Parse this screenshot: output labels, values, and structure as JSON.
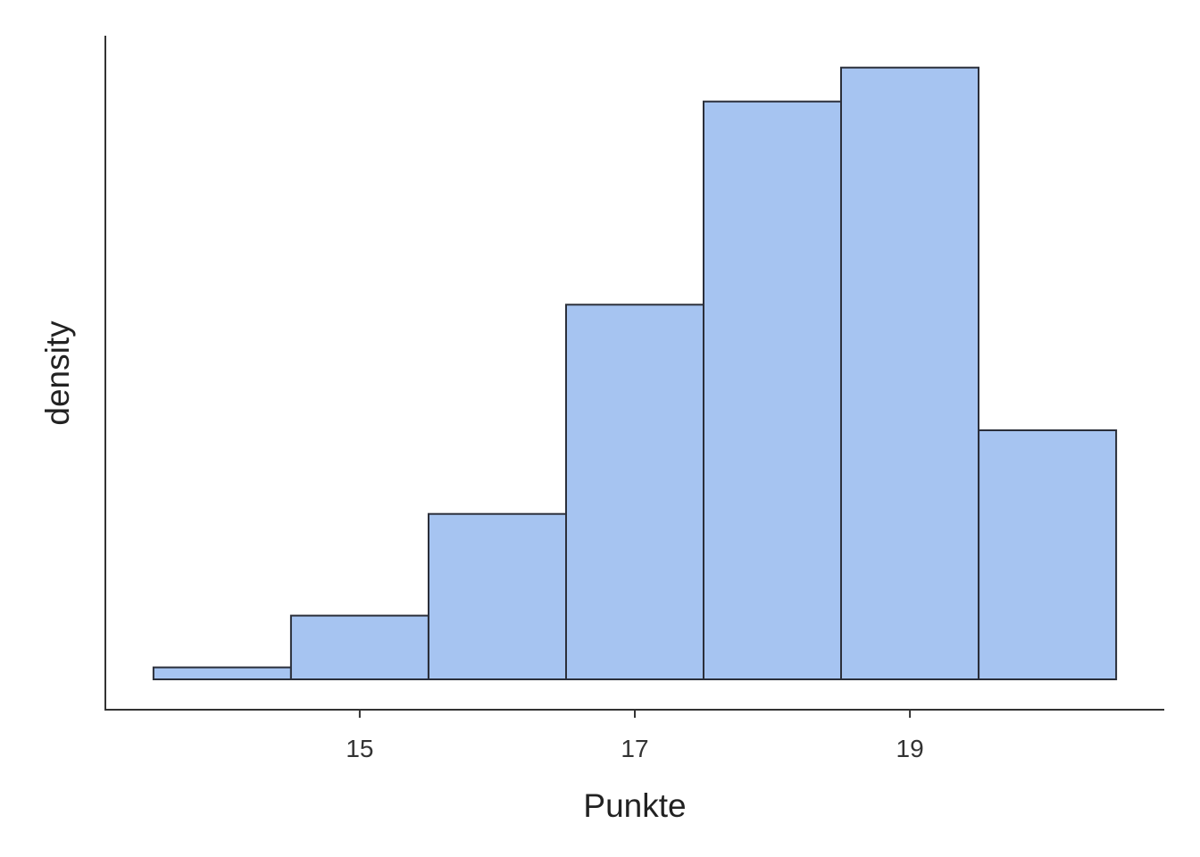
{
  "chart_data": {
    "type": "bar",
    "subtype": "histogram",
    "xlabel": "Punkte",
    "ylabel": "density",
    "x_ticks": [
      15,
      17,
      19
    ],
    "y_ticks_shown": false,
    "xlim": [
      13.15,
      20.85
    ],
    "ylim": [
      0,
      0.323
    ],
    "bin_width": 1,
    "bins": [
      {
        "center": 14,
        "density": 0.006
      },
      {
        "center": 15,
        "density": 0.032
      },
      {
        "center": 16,
        "density": 0.083
      },
      {
        "center": 17,
        "density": 0.188
      },
      {
        "center": 18,
        "density": 0.29
      },
      {
        "center": 19,
        "density": 0.307
      },
      {
        "center": 20,
        "density": 0.125
      }
    ],
    "grid": false,
    "bar_color": "#a6c4f1",
    "bar_outline": "#2b2f3a"
  }
}
